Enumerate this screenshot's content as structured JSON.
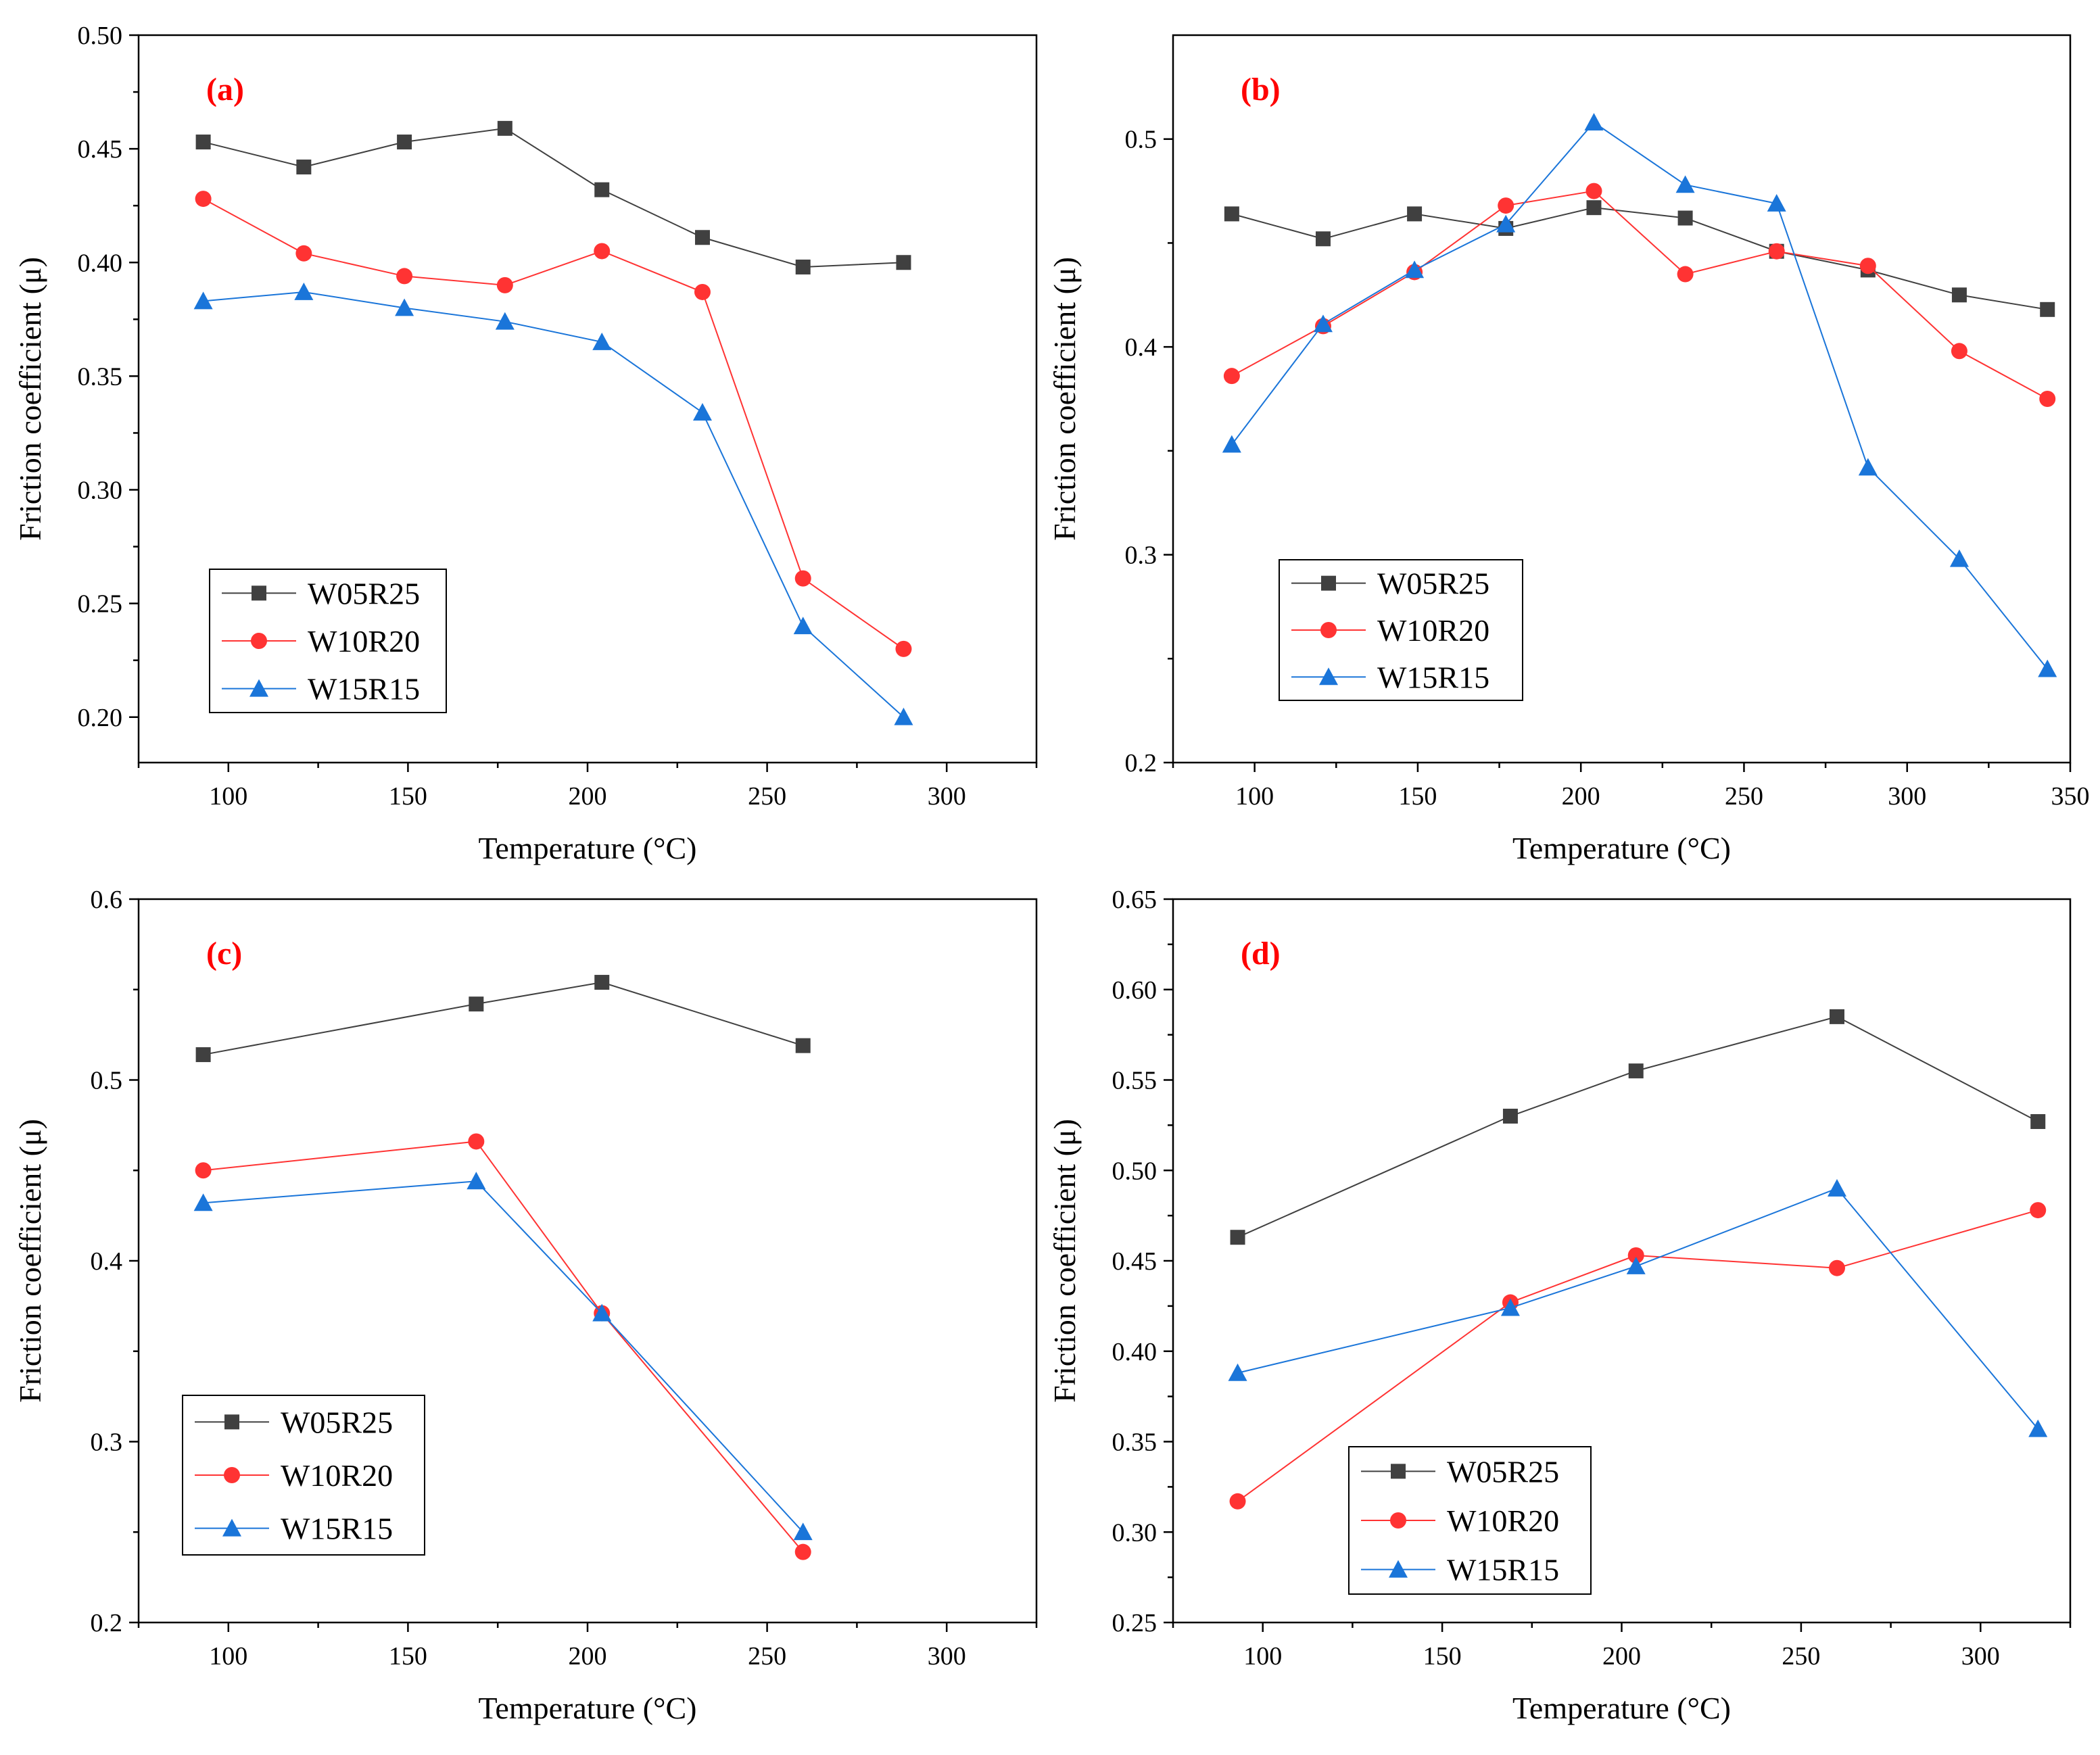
{
  "chart_data": [
    {
      "type": "line",
      "panel_label": "(a)",
      "xlabel": "Temperature (°C)",
      "ylabel": "Friction coefficient (μ)",
      "xlim": [
        75,
        325
      ],
      "ylim": [
        0.18,
        0.5
      ],
      "xticks": [
        100,
        150,
        200,
        250,
        300
      ],
      "yticks": [
        0.2,
        0.25,
        0.3,
        0.35,
        0.4,
        0.45,
        0.5
      ],
      "ytick_decimals": 2,
      "legend_position": "bottom-left",
      "series": [
        {
          "name": "W05R25",
          "color": "#404040",
          "marker": "square",
          "x": [
            93,
            121,
            149,
            177,
            204,
            232,
            260,
            288
          ],
          "y": [
            0.453,
            0.442,
            0.453,
            0.459,
            0.432,
            0.411,
            0.398,
            0.4
          ]
        },
        {
          "name": "W10R20",
          "color": "#ff3333",
          "marker": "circle",
          "x": [
            93,
            121,
            149,
            177,
            204,
            232,
            260,
            288
          ],
          "y": [
            0.428,
            0.404,
            0.394,
            0.39,
            0.405,
            0.387,
            0.261,
            0.23
          ]
        },
        {
          "name": "W15R15",
          "color": "#1a75d9",
          "marker": "triangle",
          "x": [
            93,
            121,
            149,
            177,
            204,
            232,
            260,
            288
          ],
          "y": [
            0.383,
            0.387,
            0.38,
            0.374,
            0.365,
            0.334,
            0.24,
            0.2
          ]
        }
      ]
    },
    {
      "type": "line",
      "panel_label": "(b)",
      "xlabel": "Temperature (°C)",
      "ylabel": "Friction coefficient (μ)",
      "xlim": [
        75,
        350
      ],
      "ylim": [
        0.2,
        0.55
      ],
      "xticks": [
        100,
        150,
        200,
        250,
        300,
        350
      ],
      "yticks": [
        0.2,
        0.3,
        0.4,
        0.5
      ],
      "ytick_decimals": 1,
      "legend_position": "bottom-left",
      "series": [
        {
          "name": "W05R25",
          "color": "#404040",
          "marker": "square",
          "x": [
            93,
            121,
            149,
            177,
            204,
            232,
            260,
            288,
            316,
            343
          ],
          "y": [
            0.464,
            0.452,
            0.464,
            0.457,
            0.467,
            0.462,
            0.446,
            0.437,
            0.425,
            0.418
          ]
        },
        {
          "name": "W10R20",
          "color": "#ff3333",
          "marker": "circle",
          "x": [
            93,
            121,
            149,
            177,
            204,
            232,
            260,
            288,
            316,
            343
          ],
          "y": [
            0.386,
            0.41,
            0.436,
            0.468,
            0.475,
            0.435,
            0.446,
            0.439,
            0.398,
            0.375
          ]
        },
        {
          "name": "W15R15",
          "color": "#1a75d9",
          "marker": "triangle",
          "x": [
            93,
            121,
            149,
            177,
            204,
            232,
            260,
            288,
            316,
            343
          ],
          "y": [
            0.353,
            0.411,
            0.437,
            0.459,
            0.508,
            0.478,
            0.469,
            0.342,
            0.298,
            0.245
          ]
        }
      ]
    },
    {
      "type": "line",
      "panel_label": "(c)",
      "xlabel": "Temperature (°C)",
      "ylabel": "Friction coefficient (μ)",
      "xlim": [
        75,
        325
      ],
      "ylim": [
        0.2,
        0.6
      ],
      "xticks": [
        100,
        150,
        200,
        250,
        300
      ],
      "yticks": [
        0.2,
        0.3,
        0.4,
        0.5,
        0.6
      ],
      "ytick_decimals": 1,
      "legend_position": "bottom-left",
      "series": [
        {
          "name": "W05R25",
          "color": "#404040",
          "marker": "square",
          "x": [
            93,
            169,
            204,
            260
          ],
          "y": [
            0.514,
            0.542,
            0.554,
            0.519
          ]
        },
        {
          "name": "W10R20",
          "color": "#ff3333",
          "marker": "circle",
          "x": [
            93,
            169,
            204,
            260
          ],
          "y": [
            0.45,
            0.466,
            0.371,
            0.239
          ]
        },
        {
          "name": "W15R15",
          "color": "#1a75d9",
          "marker": "triangle",
          "x": [
            93,
            169,
            204,
            260
          ],
          "y": [
            0.432,
            0.444,
            0.371,
            0.25
          ]
        }
      ]
    },
    {
      "type": "line",
      "panel_label": "(d)",
      "xlabel": "Temperature (°C)",
      "ylabel": "Friction coefficient (μ)",
      "xlim": [
        75,
        325
      ],
      "ylim": [
        0.25,
        0.65
      ],
      "xticks": [
        100,
        150,
        200,
        250,
        300
      ],
      "yticks": [
        0.25,
        0.3,
        0.35,
        0.4,
        0.45,
        0.5,
        0.55,
        0.6,
        0.65
      ],
      "ytick_decimals": 2,
      "legend_position": "bottom-left",
      "series": [
        {
          "name": "W05R25",
          "color": "#404040",
          "marker": "square",
          "x": [
            93,
            169,
            204,
            260,
            316
          ],
          "y": [
            0.463,
            0.53,
            0.555,
            0.585,
            0.527
          ]
        },
        {
          "name": "W10R20",
          "color": "#ff3333",
          "marker": "circle",
          "x": [
            93,
            169,
            204,
            260,
            316
          ],
          "y": [
            0.317,
            0.427,
            0.453,
            0.446,
            0.478
          ]
        },
        {
          "name": "W15R15",
          "color": "#1a75d9",
          "marker": "triangle",
          "x": [
            93,
            169,
            204,
            260,
            316
          ],
          "y": [
            0.388,
            0.424,
            0.447,
            0.49,
            0.357
          ]
        }
      ]
    }
  ]
}
